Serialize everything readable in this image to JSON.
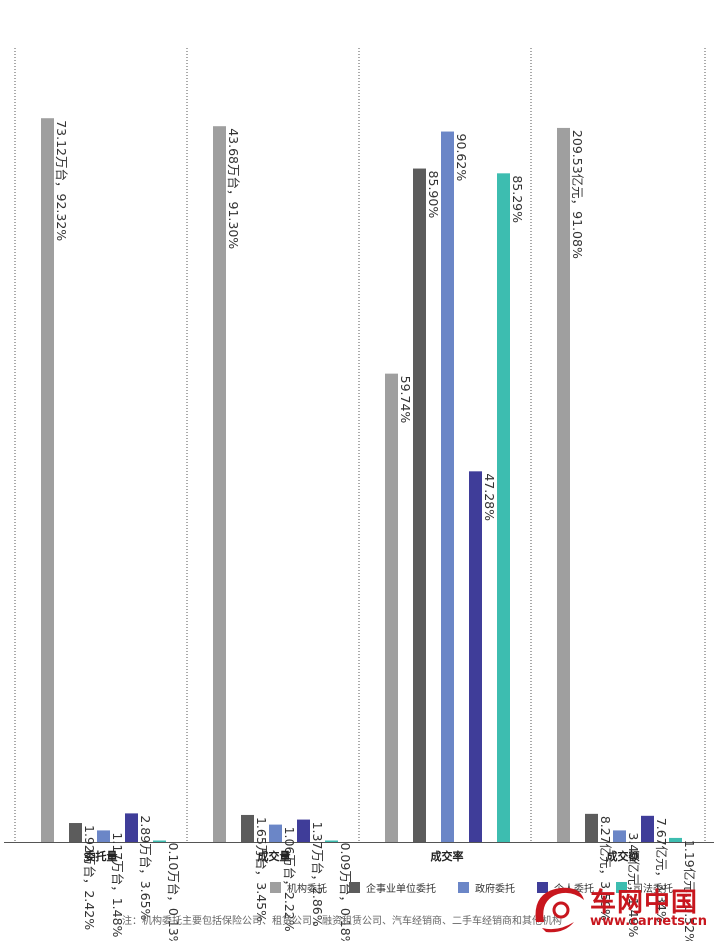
{
  "chart_data": {
    "type": "bar",
    "categories": [
      "委托量",
      "成交量",
      "成交率",
      "成交额"
    ],
    "series": [
      {
        "name": "机构委托",
        "color": "#9f9f9f",
        "values": [
          92.32,
          91.3,
          59.74,
          91.08
        ],
        "labels": [
          "73.12万台，92.32%",
          "43.68万台，91.30%",
          "59.74%",
          "209.53亿元，91.08%"
        ]
      },
      {
        "name": "企事业单位委托",
        "color": "#5c5c5c",
        "values": [
          2.42,
          3.45,
          85.9,
          3.59
        ],
        "labels": [
          "1.92万台，2.42%",
          "1.65万台，3.45%",
          "85.90%",
          "8.27亿元，3.59%"
        ]
      },
      {
        "name": "政府委托",
        "color": "#6b86c7",
        "values": [
          1.48,
          2.22,
          90.62,
          1.48
        ],
        "labels": [
          "1.17万台，1.48%",
          "1.06万台，2.22%",
          "90.62%",
          "3.40亿元，1.48%"
        ]
      },
      {
        "name": "个人委托",
        "color": "#3f3d99",
        "values": [
          3.65,
          2.86,
          47.28,
          3.34
        ],
        "labels": [
          "2.89万台，3.65%",
          "1.37万台，2.86%",
          "47.28%",
          "7.67亿元，3.34%"
        ]
      },
      {
        "name": "司法委托",
        "color": "#3dbdb0",
        "values": [
          0.13,
          0.18,
          85.29,
          0.52
        ],
        "labels": [
          "0.10万台，0.13%",
          "0.09万台，0.18%",
          "85.29%",
          "1.19亿元，0.52%"
        ]
      }
    ],
    "ylim": [
      0,
      100
    ],
    "legend_position": "bottom",
    "grid": false
  },
  "footnote": "注：机构委托主要包括保险公司、租赁公司、融资租赁公司、汽车经销商、二手车经销商和其他机构",
  "watermark": {
    "name": "车网中国",
    "url": "www.carnets.cn"
  }
}
